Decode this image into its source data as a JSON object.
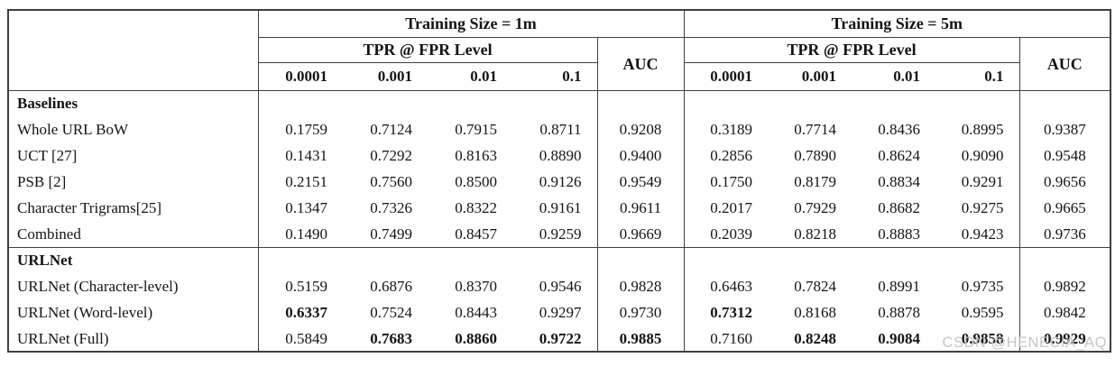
{
  "watermark": "CSDN @HENECIA_AQ",
  "colors": {
    "border": "#3f3f3f",
    "watermark": "#c6c6c6"
  },
  "table": {
    "group_1m_title": "Training Size = 1m",
    "group_5m_title": "Training Size = 5m",
    "tpr_header": "TPR @ FPR Level",
    "auc_header": "AUC",
    "fpr_levels": [
      "0.0001",
      "0.001",
      "0.01",
      "0.1"
    ],
    "sections": [
      {
        "title": "Baselines",
        "rows": [
          {
            "label": "Whole URL BoW",
            "cells": [
              {
                "v": "0.1759"
              },
              {
                "v": "0.7124"
              },
              {
                "v": "0.7915"
              },
              {
                "v": "0.8711"
              },
              {
                "v": "0.9208"
              },
              {
                "v": "0.3189"
              },
              {
                "v": "0.7714"
              },
              {
                "v": "0.8436"
              },
              {
                "v": "0.8995"
              },
              {
                "v": "0.9387"
              }
            ]
          },
          {
            "label": "UCT [27]",
            "cells": [
              {
                "v": "0.1431"
              },
              {
                "v": "0.7292"
              },
              {
                "v": "0.8163"
              },
              {
                "v": "0.8890"
              },
              {
                "v": "0.9400"
              },
              {
                "v": "0.2856"
              },
              {
                "v": "0.7890"
              },
              {
                "v": "0.8624"
              },
              {
                "v": "0.9090"
              },
              {
                "v": "0.9548"
              }
            ]
          },
          {
            "label": "PSB [2]",
            "cells": [
              {
                "v": "0.2151"
              },
              {
                "v": "0.7560"
              },
              {
                "v": "0.8500"
              },
              {
                "v": "0.9126"
              },
              {
                "v": "0.9549"
              },
              {
                "v": "0.1750"
              },
              {
                "v": "0.8179"
              },
              {
                "v": "0.8834"
              },
              {
                "v": "0.9291"
              },
              {
                "v": "0.9656"
              }
            ]
          },
          {
            "label": "Character Trigrams[25]",
            "cells": [
              {
                "v": "0.1347"
              },
              {
                "v": "0.7326"
              },
              {
                "v": "0.8322"
              },
              {
                "v": "0.9161"
              },
              {
                "v": "0.9611"
              },
              {
                "v": "0.2017"
              },
              {
                "v": "0.7929"
              },
              {
                "v": "0.8682"
              },
              {
                "v": "0.9275"
              },
              {
                "v": "0.9665"
              }
            ]
          },
          {
            "label": "Combined",
            "cells": [
              {
                "v": "0.1490"
              },
              {
                "v": "0.7499"
              },
              {
                "v": "0.8457"
              },
              {
                "v": "0.9259"
              },
              {
                "v": "0.9669"
              },
              {
                "v": "0.2039"
              },
              {
                "v": "0.8218"
              },
              {
                "v": "0.8883"
              },
              {
                "v": "0.9423"
              },
              {
                "v": "0.9736"
              }
            ]
          }
        ]
      },
      {
        "title": "URLNet",
        "rows": [
          {
            "label": "URLNet (Character-level)",
            "cells": [
              {
                "v": "0.5159"
              },
              {
                "v": "0.6876"
              },
              {
                "v": "0.8370"
              },
              {
                "v": "0.9546"
              },
              {
                "v": "0.9828"
              },
              {
                "v": "0.6463"
              },
              {
                "v": "0.7824"
              },
              {
                "v": "0.8991"
              },
              {
                "v": "0.9735"
              },
              {
                "v": "0.9892"
              }
            ]
          },
          {
            "label": "URLNet (Word-level)",
            "cells": [
              {
                "v": "0.6337",
                "b": true
              },
              {
                "v": "0.7524"
              },
              {
                "v": "0.8443"
              },
              {
                "v": "0.9297"
              },
              {
                "v": "0.9730"
              },
              {
                "v": "0.7312",
                "b": true
              },
              {
                "v": "0.8168"
              },
              {
                "v": "0.8878"
              },
              {
                "v": "0.9595"
              },
              {
                "v": "0.9842"
              }
            ]
          },
          {
            "label": "URLNet (Full)",
            "cells": [
              {
                "v": "0.5849"
              },
              {
                "v": "0.7683",
                "b": true
              },
              {
                "v": "0.8860",
                "b": true
              },
              {
                "v": "0.9722",
                "b": true
              },
              {
                "v": "0.9885",
                "b": true
              },
              {
                "v": "0.7160"
              },
              {
                "v": "0.8248",
                "b": true
              },
              {
                "v": "0.9084",
                "b": true
              },
              {
                "v": "0.9858",
                "b": true
              },
              {
                "v": "0.9929",
                "b": true
              }
            ]
          }
        ]
      }
    ]
  }
}
